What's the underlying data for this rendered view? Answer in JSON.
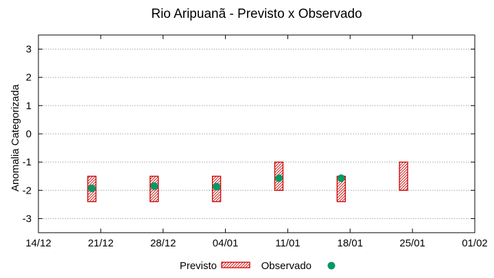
{
  "chart_data": {
    "type": "range-bar-scatter",
    "title": "Rio Aripuanã - Previsto x Observado",
    "xlabel": "",
    "ylabel": "Anomalia Categorizada",
    "x_ticks": [
      "14/12",
      "21/12",
      "28/12",
      "04/01",
      "11/01",
      "18/01",
      "25/01",
      "01/02"
    ],
    "xlim": [
      "14/12",
      "01/02"
    ],
    "ylim": [
      -3.5,
      3.5
    ],
    "y_ticks": [
      -3,
      -2,
      -1,
      0,
      1,
      2,
      3
    ],
    "grid": true,
    "legend_position": "bottom",
    "series": [
      {
        "name": "Previsto",
        "kind": "range",
        "color": "#cc0000",
        "hatch": true,
        "points": [
          {
            "x": "20/12",
            "low": -2.4,
            "high": -1.5
          },
          {
            "x": "27/12",
            "low": -2.4,
            "high": -1.5
          },
          {
            "x": "03/01",
            "low": -2.4,
            "high": -1.5
          },
          {
            "x": "10/01",
            "low": -2.0,
            "high": -1.0
          },
          {
            "x": "17/01",
            "low": -2.4,
            "high": -1.5
          },
          {
            "x": "24/01",
            "low": -2.0,
            "high": -1.0
          }
        ]
      },
      {
        "name": "Observado",
        "kind": "point",
        "color": "#009966",
        "points": [
          {
            "x": "20/12",
            "y": -1.93
          },
          {
            "x": "27/12",
            "y": -1.85
          },
          {
            "x": "03/01",
            "y": -1.87
          },
          {
            "x": "10/01",
            "y": -1.57
          },
          {
            "x": "17/01",
            "y": -1.57
          }
        ]
      }
    ]
  }
}
